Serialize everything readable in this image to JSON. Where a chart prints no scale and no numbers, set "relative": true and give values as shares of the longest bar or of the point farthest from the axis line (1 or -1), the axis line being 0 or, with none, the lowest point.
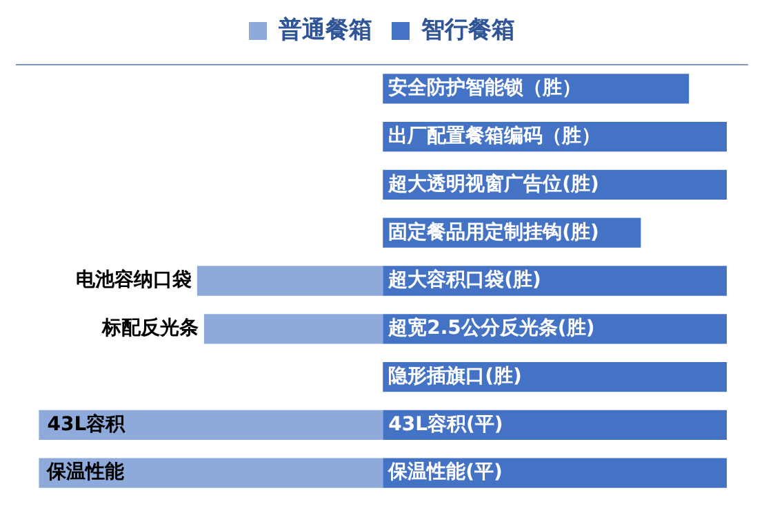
{
  "chart_data": {
    "type": "bar",
    "orientation": "horizontal",
    "stacked": true,
    "relative": true,
    "legend": "top",
    "grid": false,
    "categories": [
      "安全防护智能锁（胜）",
      "出厂配置餐箱编码（胜）",
      "超大透明视窗广告位(胜)",
      "固定餐品用定制挂钩(胜)",
      "超大容积口袋(胜)",
      "超宽2.5公分反光条(胜)",
      "隐形插旗口(胜)",
      "43L容积(平)",
      "保温性能(平)"
    ],
    "series": [
      {
        "name": "普通餐箱",
        "color": "#8eaadb",
        "values": [
          null,
          null,
          null,
          null,
          -0.54,
          -0.52,
          null,
          -1,
          -1
        ]
      },
      {
        "name": "智行餐箱",
        "color": "#4472c4",
        "values": [
          0.89,
          1,
          1,
          0.75,
          1,
          1,
          1,
          1,
          1
        ]
      }
    ],
    "annotations": [
      {
        "text": "电池容纳口袋",
        "x": -0.54,
        "y": "超大容积口袋(胜)"
      },
      {
        "text": "标配反光条",
        "x": -0.52,
        "y": "超宽2.5公分反光条(胜)"
      },
      {
        "text": "43L容积",
        "x": -1,
        "y": "43L容积(平)"
      },
      {
        "text": "保温性能",
        "x": -1,
        "y": "保温性能(平)"
      }
    ]
  }
}
